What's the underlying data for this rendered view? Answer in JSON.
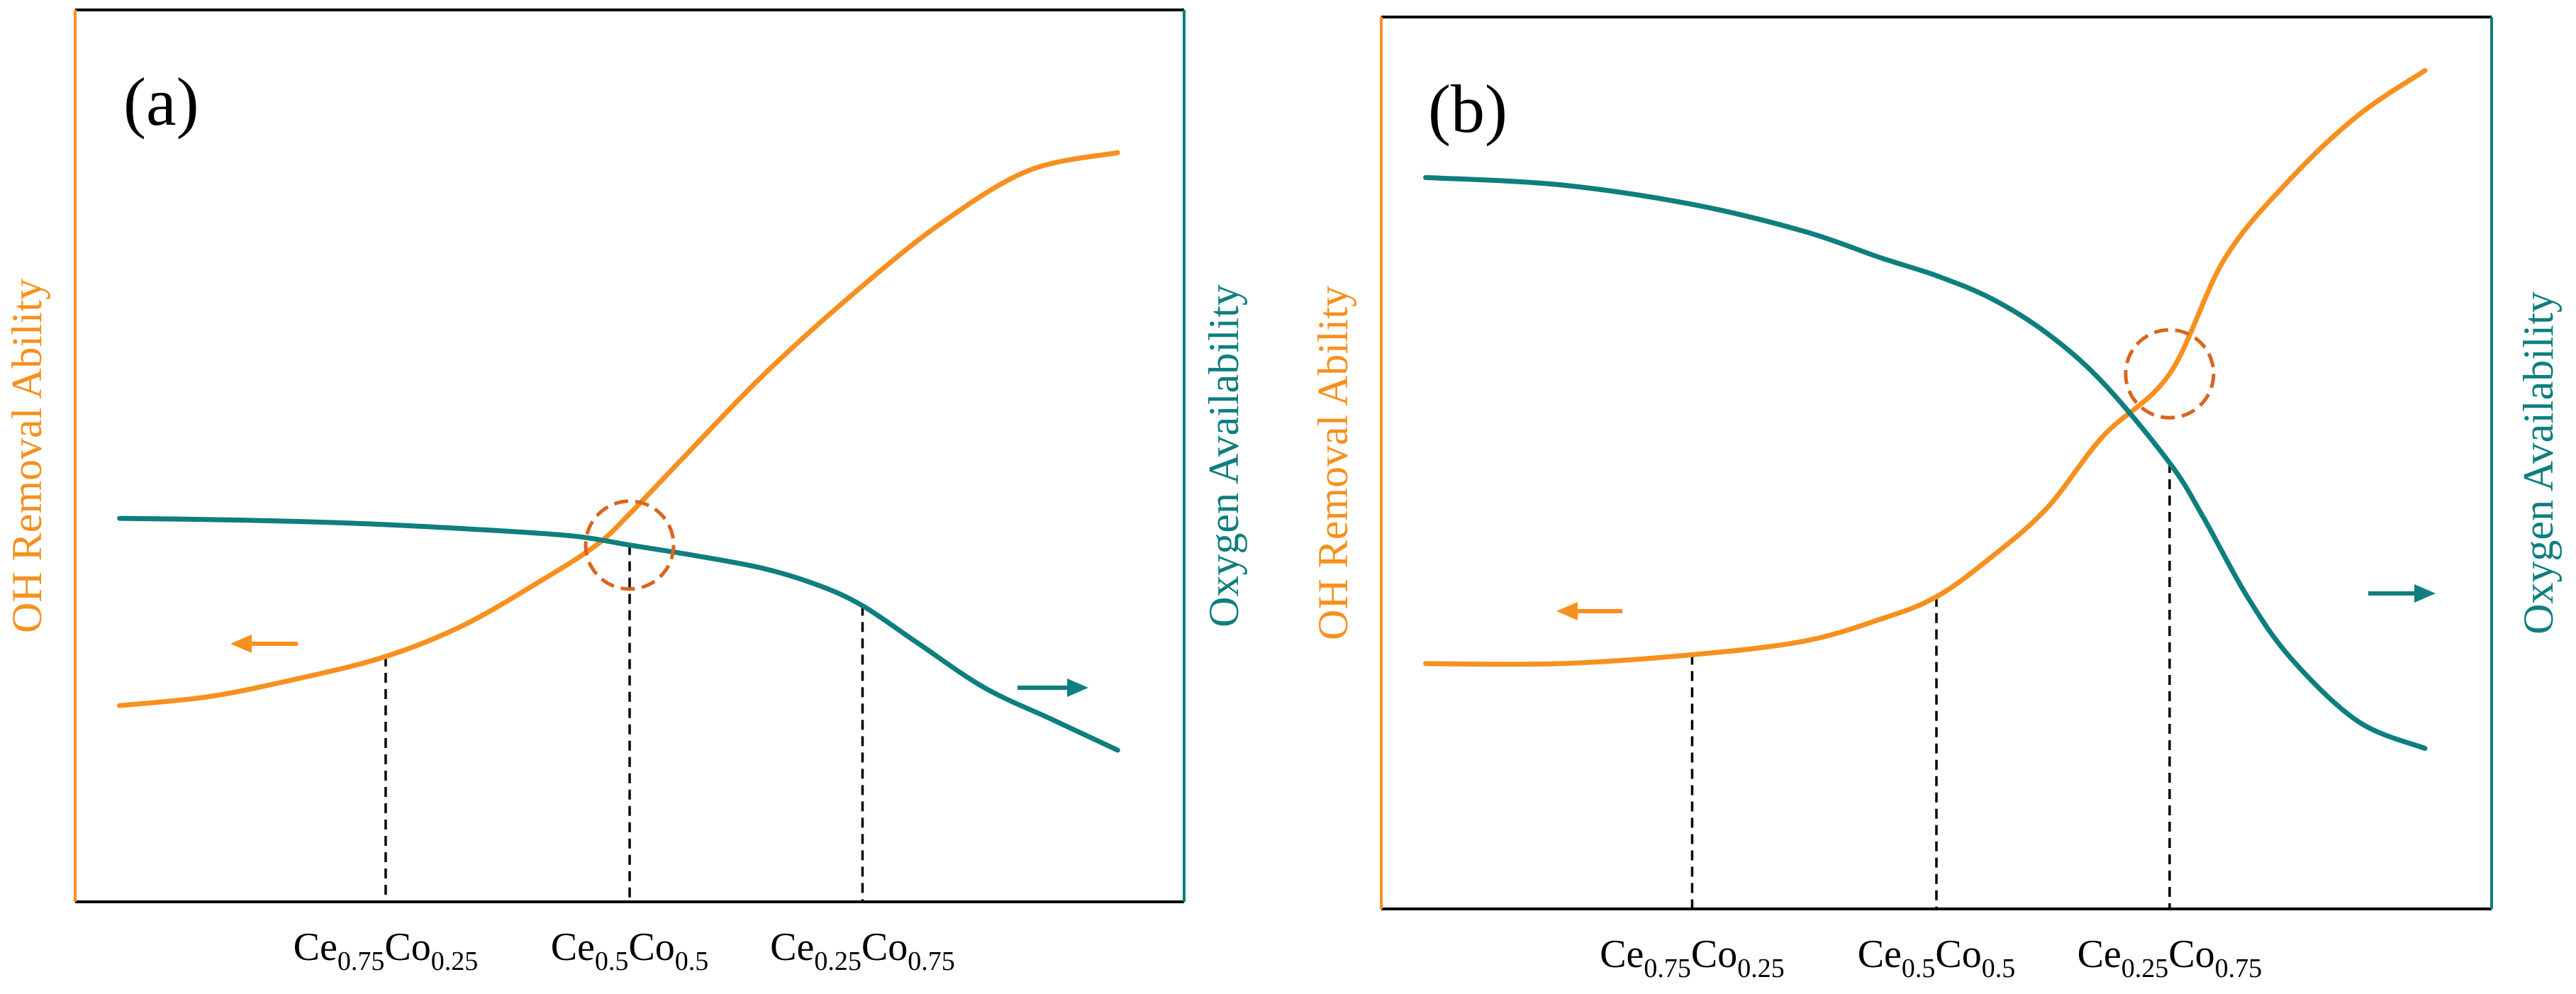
{
  "colors": {
    "oh_removal": "#F7901E",
    "oxygen": "#0E7E7E",
    "circle": "#D9651E",
    "frame": "#000000",
    "guide": "#000000"
  },
  "chart_data": [
    {
      "type": "line",
      "panel_label": "(a)",
      "ylabel_left": "OH Removal Ability",
      "ylabel_right": "Oxygen Availability",
      "xlabel": "",
      "xlim": [
        0,
        100
      ],
      "ylim_left": [
        0,
        100
      ],
      "ylim_right": [
        0,
        100
      ],
      "ticks": [
        {
          "x": 28,
          "base": "Ce",
          "sub1": "0.75",
          "mid": "Co",
          "sub2": "0.25"
        },
        {
          "x": 50,
          "base": "Ce",
          "sub1": "0.5",
          "mid": "Co",
          "sub2": "0.5"
        },
        {
          "x": 71,
          "base": "Ce",
          "sub1": "0.25",
          "mid": "Co",
          "sub2": "0.75"
        }
      ],
      "guides": [
        {
          "x": 28,
          "series": "OH Removal Ability"
        },
        {
          "x": 50,
          "series": "Oxygen Availability"
        },
        {
          "x": 71,
          "series": "Oxygen Availability"
        }
      ],
      "series": [
        {
          "name": "OH Removal Ability",
          "axis": "left",
          "x": [
            4,
            12,
            20,
            28,
            35,
            42,
            47,
            50,
            55,
            62,
            70,
            78,
            86,
            94
          ],
          "y": [
            22,
            23,
            25,
            27.5,
            31,
            36,
            40,
            43.5,
            50,
            59,
            68,
            76,
            82,
            84
          ]
        },
        {
          "name": "Oxygen Availability",
          "axis": "right",
          "x": [
            4,
            15,
            26,
            37,
            45,
            50,
            56,
            62,
            67,
            71,
            76,
            82,
            88,
            94
          ],
          "y": [
            43,
            42.8,
            42.4,
            41.7,
            41,
            40,
            38.8,
            37.4,
            35.5,
            33.2,
            29,
            24,
            20.5,
            17
          ]
        }
      ],
      "intersection": {
        "x": 50,
        "y": 40
      },
      "arrows": [
        {
          "direction": "left",
          "series": "OH Removal Ability"
        },
        {
          "direction": "right",
          "series": "Oxygen Availability"
        }
      ]
    },
    {
      "type": "line",
      "panel_label": "(b)",
      "ylabel_left": "OH Removal Ability",
      "ylabel_right": "Oxygen Availability",
      "xlabel": "",
      "xlim": [
        0,
        100
      ],
      "ylim_left": [
        0,
        100
      ],
      "ylim_right": [
        0,
        100
      ],
      "ticks": [
        {
          "x": 28,
          "base": "Ce",
          "sub1": "0.75",
          "mid": "Co",
          "sub2": "0.25"
        },
        {
          "x": 50,
          "base": "Ce",
          "sub1": "0.5",
          "mid": "Co",
          "sub2": "0.5"
        },
        {
          "x": 71,
          "base": "Ce",
          "sub1": "0.25",
          "mid": "Co",
          "sub2": "0.75"
        }
      ],
      "guides": [
        {
          "x": 28,
          "series": "OH Removal Ability"
        },
        {
          "x": 50,
          "series": "OH Removal Ability"
        },
        {
          "x": 71,
          "series": "Oxygen Availability"
        }
      ],
      "series": [
        {
          "name": "OH Removal Ability",
          "axis": "left",
          "x": [
            4,
            16,
            28,
            38,
            45,
            50,
            55,
            60,
            65,
            71,
            76,
            82,
            88,
            94
          ],
          "y": [
            27.5,
            27.5,
            28.5,
            30,
            32.5,
            35,
            39.5,
            45,
            53,
            60,
            73,
            82,
            89,
            94
          ]
        },
        {
          "name": "Oxygen Availability",
          "axis": "right",
          "x": [
            4,
            16,
            28,
            38,
            45,
            50,
            55,
            60,
            65,
            71,
            74,
            78,
            82,
            88,
            94
          ],
          "y": [
            82,
            81.2,
            79,
            76,
            73,
            71,
            68.4,
            64.5,
            59,
            50,
            44,
            35,
            28,
            21,
            18
          ]
        }
      ],
      "intersection": {
        "x": 71,
        "y": 60
      },
      "arrows": [
        {
          "direction": "left",
          "series": "OH Removal Ability"
        },
        {
          "direction": "right",
          "series": "Oxygen Availability"
        }
      ]
    }
  ]
}
